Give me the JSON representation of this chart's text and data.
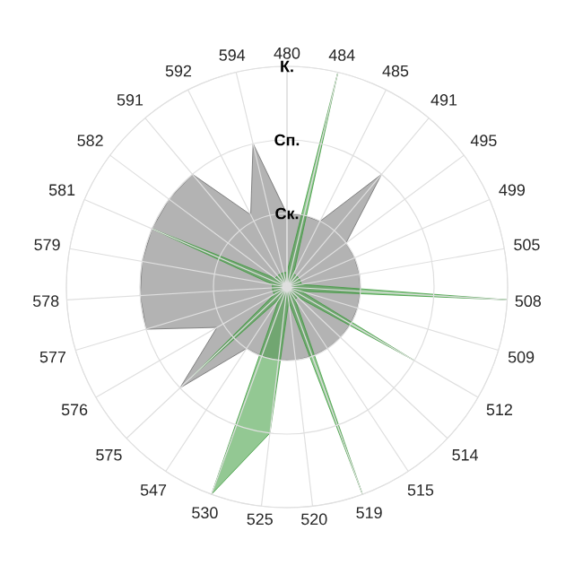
{
  "chart_data": {
    "type": "radar",
    "categories": [
      "480",
      "484",
      "485",
      "491",
      "495",
      "499",
      "505",
      "508",
      "509",
      "512",
      "514",
      "515",
      "519",
      "520",
      "525",
      "530",
      "547",
      "575",
      "576",
      "577",
      "578",
      "579",
      "581",
      "582",
      "591",
      "592",
      "594"
    ],
    "series": [
      {
        "color": "#b3b3b3",
        "values": [
          1.0,
          1.0,
          1.0,
          2.0,
          1.0,
          1.0,
          1.0,
          1.0,
          1.0,
          1.0,
          1.0,
          1.0,
          1.0,
          1.0,
          1.0,
          1.0,
          1.0,
          2.0,
          1.1,
          2.0,
          2.0,
          2.0,
          2.0,
          2.0,
          2.0,
          1.1,
          2.0
        ]
      },
      {
        "color": "#3a9a3a",
        "values": [
          0.2,
          3.0,
          0.2,
          0.2,
          0.2,
          0.2,
          0.2,
          3.0,
          0.2,
          2.0,
          0.2,
          0.2,
          3.0,
          0.2,
          2.0,
          3.0,
          0.2,
          1.8,
          0.2,
          0.2,
          0.2,
          0.2,
          2.0,
          0.2,
          0.2,
          0.2,
          0.2
        ]
      }
    ],
    "ylim": [
      0,
      3
    ],
    "yticks": [
      {
        "value": 1,
        "label": "Ск."
      },
      {
        "value": 2,
        "label": "Сп."
      },
      {
        "value": 3,
        "label": "К."
      }
    ],
    "grid": true
  }
}
